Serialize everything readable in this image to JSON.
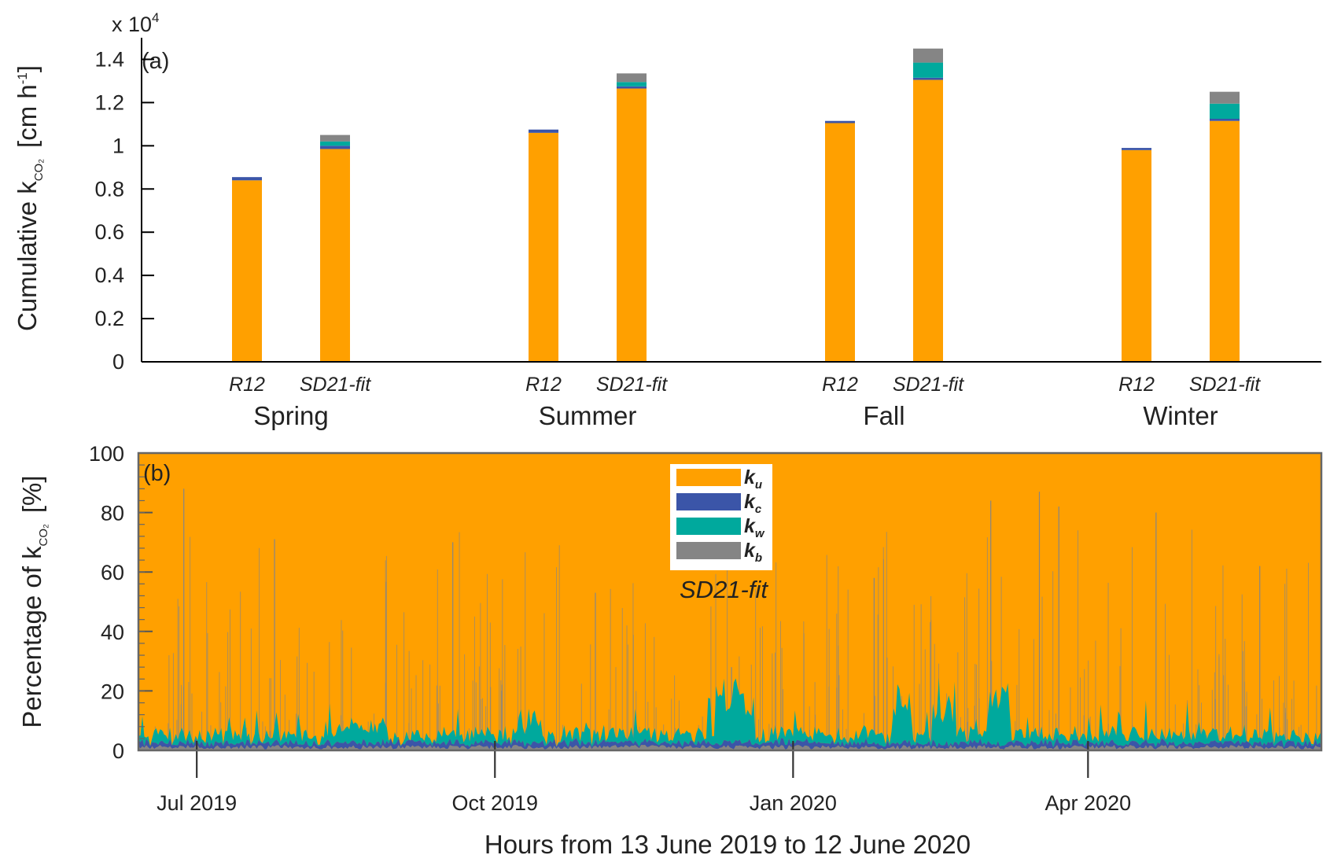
{
  "panel_a": {
    "label": "(a)",
    "exponent_label": "x 10",
    "exponent_sup": "4",
    "ylabel_main": "Cumulative k",
    "ylabel_sub": "CO₂",
    "ylabel_unit_pre": "[cm h",
    "ylabel_unit_sup": "-1",
    "ylabel_unit_post": "]",
    "yticks": [
      "0",
      "0.2",
      "0.4",
      "0.6",
      "0.8",
      "1",
      "1.2",
      "1.4"
    ],
    "seasons": [
      "Spring",
      "Summer",
      "Fall",
      "Winter"
    ]
  },
  "panel_b": {
    "label": "(b)",
    "ylabel_main": "Percentage of  k",
    "ylabel_sub": "CO₂",
    "ylabel_unit": "[%]",
    "yticks": [
      "0",
      "20",
      "40",
      "60",
      "80",
      "100"
    ],
    "xticks": [
      "Jul 2019",
      "Oct 2019",
      "Jan 2020",
      "Apr 2020"
    ],
    "xlabel": "Hours from 13 June 2019 to 12  June 2020",
    "legend": [
      {
        "main": "k",
        "sub": "u"
      },
      {
        "main": "k",
        "sub": "c"
      },
      {
        "main": "k",
        "sub": "w"
      },
      {
        "main": "k",
        "sub": "b"
      }
    ],
    "note": "SD21-fit"
  },
  "colors": {
    "ku": "#FFA000",
    "kc": "#3B55A8",
    "kw": "#00A99D",
    "kb": "#858585"
  },
  "chart_data": [
    {
      "type": "bar",
      "stacked": true,
      "groups": [
        "Spring",
        "Summer",
        "Fall",
        "Winter"
      ],
      "categories": [
        "R12",
        "SD21-fit"
      ],
      "ylim": [
        0,
        1.5
      ],
      "y_scale_factor": 10000,
      "series": [
        {
          "name": "ku",
          "values": [
            [
              0.84,
              0.985
            ],
            [
              1.06,
              1.265
            ],
            [
              1.105,
              1.305
            ],
            [
              0.98,
              1.115
            ]
          ]
        },
        {
          "name": "kc",
          "values": [
            [
              0.015,
              0.015
            ],
            [
              0.015,
              0.01
            ],
            [
              0.01,
              0.01
            ],
            [
              0.01,
              0.01
            ]
          ]
        },
        {
          "name": "kw",
          "values": [
            [
              0.0,
              0.02
            ],
            [
              0.0,
              0.02
            ],
            [
              0.0,
              0.07
            ],
            [
              0.0,
              0.07
            ]
          ]
        },
        {
          "name": "kb",
          "values": [
            [
              0.0,
              0.03
            ],
            [
              0.0,
              0.04
            ],
            [
              0.0,
              0.065
            ],
            [
              0.0,
              0.055
            ]
          ]
        }
      ],
      "grid": false
    },
    {
      "type": "area",
      "stacked": true,
      "x_start": "2019-06-13",
      "x_end": "2020-06-12",
      "ylim": [
        0,
        100
      ],
      "grid": false,
      "legend_position": "top-center",
      "series": [
        {
          "name": "ku",
          "description": "fills remainder to 100%"
        },
        {
          "name": "kc",
          "typical_range": [
            0,
            3
          ]
        },
        {
          "name": "kw",
          "typical_range": [
            0,
            8
          ]
        },
        {
          "name": "kb",
          "typical_range": [
            0,
            3
          ]
        }
      ],
      "notable_spikes": [
        {
          "x": "2019-06-27",
          "y": 88
        },
        {
          "x": "2019-07-25",
          "y": 71
        },
        {
          "x": "2019-09-18",
          "y": 70
        },
        {
          "x": "2019-11-01",
          "y": 53
        },
        {
          "x": "2019-12-13",
          "y": 28
        },
        {
          "x": "2020-01-26",
          "y": 58
        },
        {
          "x": "2020-03-02",
          "y": 84
        },
        {
          "x": "2020-03-17",
          "y": 87
        },
        {
          "x": "2020-03-23",
          "y": 82
        },
        {
          "x": "2020-04-22",
          "y": 80
        },
        {
          "x": "2020-05-24",
          "y": 62
        }
      ]
    }
  ]
}
